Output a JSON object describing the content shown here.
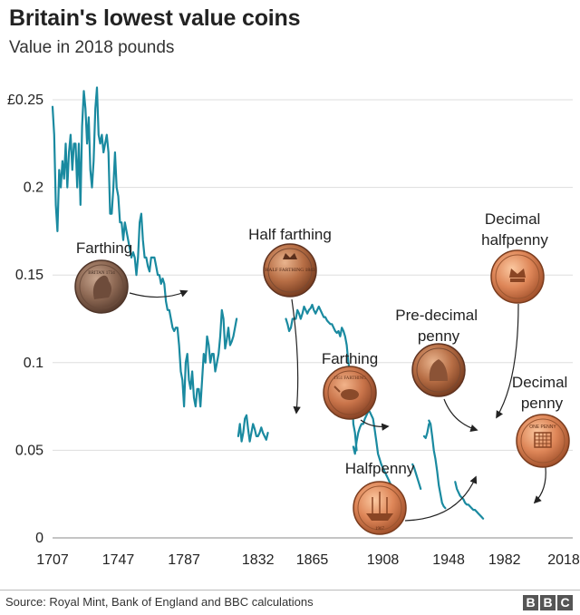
{
  "header": {
    "title": "Britain's lowest value coins",
    "subtitle": "Value in 2018 pounds"
  },
  "footer": {
    "source": "Source: Royal Mint, Bank of England and BBC calculations",
    "logo": [
      "B",
      "B",
      "C"
    ]
  },
  "colors": {
    "line": "#1a8aa0",
    "grid": "#dddddd",
    "text": "#222222"
  },
  "chart_data": {
    "type": "line",
    "xlim": [
      1707,
      2018
    ],
    "ylim": [
      0,
      0.25
    ],
    "x_ticks": [
      {
        "value": 1707,
        "label": "1707"
      },
      {
        "value": 1747,
        "label": "1747"
      },
      {
        "value": 1787,
        "label": "1787"
      },
      {
        "value": 1832,
        "label": "1832"
      },
      {
        "value": 1865,
        "label": "1865"
      },
      {
        "value": 1908,
        "label": "1908"
      },
      {
        "value": 1948,
        "label": "1948"
      },
      {
        "value": 1982,
        "label": "1982"
      },
      {
        "value": 2018,
        "label": "2018"
      }
    ],
    "y_ticks": [
      {
        "value": 0,
        "label": "0"
      },
      {
        "value": 0.05,
        "label": "0.05"
      },
      {
        "value": 0.1,
        "label": "0.1"
      },
      {
        "value": 0.15,
        "label": "0.15"
      },
      {
        "value": 0.2,
        "label": "0.2"
      },
      {
        "value": 0.25,
        "label": "£0.25"
      }
    ],
    "grid": "horizontal",
    "series": [
      {
        "points": [
          [
            1707,
            0.246
          ],
          [
            1708,
            0.23
          ],
          [
            1709,
            0.19
          ],
          [
            1710,
            0.175
          ],
          [
            1711,
            0.21
          ],
          [
            1712,
            0.2
          ],
          [
            1713,
            0.215
          ],
          [
            1714,
            0.205
          ],
          [
            1715,
            0.225
          ],
          [
            1716,
            0.2
          ],
          [
            1717,
            0.22
          ],
          [
            1718,
            0.23
          ],
          [
            1719,
            0.21
          ],
          [
            1720,
            0.225
          ],
          [
            1721,
            0.225
          ],
          [
            1722,
            0.2
          ],
          [
            1723,
            0.225
          ],
          [
            1724,
            0.19
          ],
          [
            1725,
            0.235
          ],
          [
            1726,
            0.255
          ],
          [
            1727,
            0.245
          ],
          [
            1728,
            0.225
          ],
          [
            1729,
            0.24
          ],
          [
            1730,
            0.21
          ],
          [
            1731,
            0.2
          ],
          [
            1732,
            0.215
          ],
          [
            1733,
            0.245
          ],
          [
            1734,
            0.257
          ],
          [
            1735,
            0.23
          ],
          [
            1736,
            0.225
          ],
          [
            1737,
            0.23
          ],
          [
            1738,
            0.22
          ],
          [
            1739,
            0.225
          ],
          [
            1740,
            0.23
          ],
          [
            1741,
            0.22
          ],
          [
            1742,
            0.185
          ],
          [
            1743,
            0.185
          ],
          [
            1744,
            0.2
          ],
          [
            1745,
            0.22
          ],
          [
            1746,
            0.2
          ],
          [
            1747,
            0.195
          ],
          [
            1748,
            0.18
          ],
          [
            1749,
            0.18
          ],
          [
            1750,
            0.17
          ],
          [
            1751,
            0.18
          ],
          [
            1752,
            0.175
          ],
          [
            1753,
            0.17
          ],
          [
            1754,
            0.165
          ],
          [
            1755,
            0.16
          ],
          [
            1756,
            0.163
          ],
          [
            1757,
            0.16
          ],
          [
            1758,
            0.15
          ],
          [
            1759,
            0.16
          ],
          [
            1760,
            0.18
          ],
          [
            1761,
            0.185
          ],
          [
            1762,
            0.17
          ],
          [
            1763,
            0.16
          ],
          [
            1764,
            0.16
          ],
          [
            1765,
            0.155
          ],
          [
            1766,
            0.152
          ],
          [
            1767,
            0.16
          ],
          [
            1768,
            0.16
          ],
          [
            1769,
            0.16
          ],
          [
            1770,
            0.155
          ],
          [
            1771,
            0.15
          ],
          [
            1772,
            0.15
          ],
          [
            1773,
            0.145
          ],
          [
            1774,
            0.148
          ],
          [
            1775,
            0.145
          ],
          [
            1776,
            0.135
          ],
          [
            1777,
            0.13
          ],
          [
            1778,
            0.13
          ],
          [
            1779,
            0.125
          ],
          [
            1780,
            0.12
          ],
          [
            1781,
            0.118
          ],
          [
            1782,
            0.12
          ],
          [
            1783,
            0.12
          ],
          [
            1784,
            0.11
          ],
          [
            1785,
            0.095
          ],
          [
            1786,
            0.09
          ],
          [
            1787,
            0.075
          ],
          [
            1788,
            0.1
          ],
          [
            1789,
            0.105
          ],
          [
            1790,
            0.09
          ],
          [
            1791,
            0.085
          ],
          [
            1792,
            0.095
          ],
          [
            1793,
            0.08
          ],
          [
            1794,
            0.075
          ],
          [
            1795,
            0.085
          ],
          [
            1796,
            0.085
          ],
          [
            1797,
            0.075
          ],
          [
            1798,
            0.09
          ],
          [
            1799,
            0.105
          ],
          [
            1800,
            0.1
          ],
          [
            1801,
            0.115
          ],
          [
            1802,
            0.11
          ],
          [
            1803,
            0.1
          ],
          [
            1804,
            0.105
          ],
          [
            1805,
            0.105
          ],
          [
            1806,
            0.095
          ],
          [
            1807,
            0.1
          ],
          [
            1808,
            0.105
          ],
          [
            1809,
            0.115
          ],
          [
            1810,
            0.13
          ],
          [
            1811,
            0.125
          ],
          [
            1812,
            0.108
          ],
          [
            1813,
            0.113
          ],
          [
            1814,
            0.12
          ],
          [
            1815,
            0.11
          ],
          [
            1816,
            0.112
          ],
          [
            1817,
            0.115
          ],
          [
            1818,
            0.12
          ],
          [
            1819,
            0.125
          ]
        ],
        "segment_years": [
          1707,
          1819
        ]
      },
      {
        "points": [
          [
            1820,
            0.058
          ],
          [
            1821,
            0.065
          ],
          [
            1822,
            0.055
          ],
          [
            1823,
            0.06
          ],
          [
            1824,
            0.068
          ],
          [
            1825,
            0.07
          ],
          [
            1826,
            0.062
          ],
          [
            1827,
            0.055
          ],
          [
            1828,
            0.06
          ],
          [
            1829,
            0.065
          ],
          [
            1830,
            0.062
          ],
          [
            1831,
            0.058
          ],
          [
            1832,
            0.058
          ],
          [
            1833,
            0.06
          ],
          [
            1834,
            0.063
          ],
          [
            1835,
            0.06
          ],
          [
            1836,
            0.058
          ],
          [
            1837,
            0.056
          ],
          [
            1838,
            0.06
          ]
        ]
      },
      {
        "points": [
          [
            1849,
            0.125
          ],
          [
            1850,
            0.122
          ],
          [
            1851,
            0.118
          ],
          [
            1852,
            0.12
          ],
          [
            1853,
            0.125
          ],
          [
            1854,
            0.125
          ],
          [
            1855,
            0.125
          ],
          [
            1856,
            0.13
          ],
          [
            1857,
            0.128
          ],
          [
            1858,
            0.125
          ],
          [
            1859,
            0.128
          ],
          [
            1860,
            0.132
          ],
          [
            1861,
            0.13
          ],
          [
            1862,
            0.128
          ],
          [
            1863,
            0.13
          ],
          [
            1864,
            0.131
          ],
          [
            1865,
            0.133
          ],
          [
            1866,
            0.13
          ],
          [
            1867,
            0.128
          ],
          [
            1868,
            0.13
          ],
          [
            1869,
            0.132
          ],
          [
            1870,
            0.13
          ],
          [
            1871,
            0.128
          ],
          [
            1872,
            0.126
          ],
          [
            1873,
            0.126
          ],
          [
            1874,
            0.124
          ],
          [
            1875,
            0.123
          ],
          [
            1876,
            0.122
          ],
          [
            1877,
            0.122
          ],
          [
            1878,
            0.12
          ],
          [
            1879,
            0.118
          ],
          [
            1880,
            0.117
          ],
          [
            1881,
            0.118
          ],
          [
            1882,
            0.115
          ],
          [
            1883,
            0.12
          ],
          [
            1884,
            0.118
          ],
          [
            1885,
            0.115
          ],
          [
            1886,
            0.11
          ],
          [
            1887,
            0.1
          ],
          [
            1888,
            0.095
          ],
          [
            1889,
            0.087
          ],
          [
            1890,
            0.065
          ],
          [
            1891,
            0.06
          ],
          [
            1892,
            0.05
          ]
        ]
      },
      {
        "points": [
          [
            1890,
            0.052
          ],
          [
            1891,
            0.048
          ],
          [
            1892,
            0.055
          ],
          [
            1893,
            0.06
          ],
          [
            1894,
            0.063
          ],
          [
            1895,
            0.065
          ],
          [
            1896,
            0.065
          ],
          [
            1897,
            0.068
          ],
          [
            1898,
            0.07
          ],
          [
            1899,
            0.072
          ],
          [
            1900,
            0.072
          ],
          [
            1901,
            0.07
          ],
          [
            1902,
            0.068
          ],
          [
            1903,
            0.062
          ],
          [
            1904,
            0.055
          ],
          [
            1905,
            0.048
          ],
          [
            1906,
            0.045
          ],
          [
            1907,
            0.042
          ],
          [
            1908,
            0.04
          ],
          [
            1909,
            0.038
          ],
          [
            1910,
            0.036
          ],
          [
            1911,
            0.034
          ],
          [
            1912,
            0.032
          ],
          [
            1913,
            0.03
          ],
          [
            1914,
            0.028
          ],
          [
            1915,
            0.026
          ],
          [
            1916,
            0.025
          ],
          [
            1917,
            0.024
          ],
          [
            1918,
            0.023
          ],
          [
            1919,
            0.023
          ],
          [
            1920,
            0.024
          ]
        ]
      },
      {
        "points": [
          [
            1926,
            0.042
          ],
          [
            1927,
            0.04
          ],
          [
            1928,
            0.037
          ],
          [
            1929,
            0.034
          ],
          [
            1930,
            0.031
          ],
          [
            1931,
            0.028
          ]
        ]
      },
      {
        "points": [
          [
            1933,
            0.058
          ],
          [
            1934,
            0.057
          ],
          [
            1935,
            0.06
          ],
          [
            1936,
            0.065
          ]
        ]
      },
      {
        "points": [
          [
            1936,
            0.067
          ],
          [
            1937,
            0.065
          ],
          [
            1938,
            0.058
          ],
          [
            1939,
            0.05
          ],
          [
            1940,
            0.045
          ],
          [
            1941,
            0.038
          ],
          [
            1942,
            0.03
          ],
          [
            1943,
            0.025
          ],
          [
            1944,
            0.02
          ],
          [
            1945,
            0.018
          ],
          [
            1946,
            0.017
          ]
        ]
      },
      {
        "points": [
          [
            1952,
            0.032
          ],
          [
            1953,
            0.028
          ],
          [
            1954,
            0.026
          ],
          [
            1955,
            0.024
          ],
          [
            1956,
            0.023
          ],
          [
            1957,
            0.022
          ],
          [
            1958,
            0.02
          ],
          [
            1959,
            0.019
          ],
          [
            1960,
            0.019
          ],
          [
            1961,
            0.018
          ],
          [
            1962,
            0.017
          ],
          [
            1963,
            0.016
          ],
          [
            1964,
            0.016
          ],
          [
            1965,
            0.015
          ],
          [
            1966,
            0.014
          ],
          [
            1967,
            0.013
          ],
          [
            1968,
            0.012
          ],
          [
            1969,
            0.011
          ]
        ]
      }
    ],
    "annotations": [
      {
        "lines": [
          "Farthing"
        ]
      },
      {
        "lines": [
          "Half farthing"
        ]
      },
      {
        "lines": [
          "Farthing"
        ]
      },
      {
        "lines": [
          "Pre-decimal",
          "penny"
        ]
      },
      {
        "lines": [
          "Decimal",
          "halfpenny"
        ]
      },
      {
        "lines": [
          "Decimal",
          "penny"
        ]
      },
      {
        "lines": [
          "Halfpenny"
        ]
      }
    ],
    "coins": [
      {
        "icon": "farthing-coin-icon",
        "inscription": "BRITAN 1734"
      },
      {
        "icon": "half-farthing-coin-icon",
        "inscription": "HALF FARTHING 1843"
      },
      {
        "icon": "wren-farthing-coin-icon",
        "inscription": "1951 FARTHING"
      },
      {
        "icon": "penny-coin-icon",
        "inscription": ""
      },
      {
        "icon": "halfpenny-coin-icon",
        "inscription": "1967"
      },
      {
        "icon": "decimal-halfpenny-coin-icon",
        "inscription": ""
      },
      {
        "icon": "decimal-penny-coin-icon",
        "inscription": "ONE PENNY"
      }
    ]
  }
}
